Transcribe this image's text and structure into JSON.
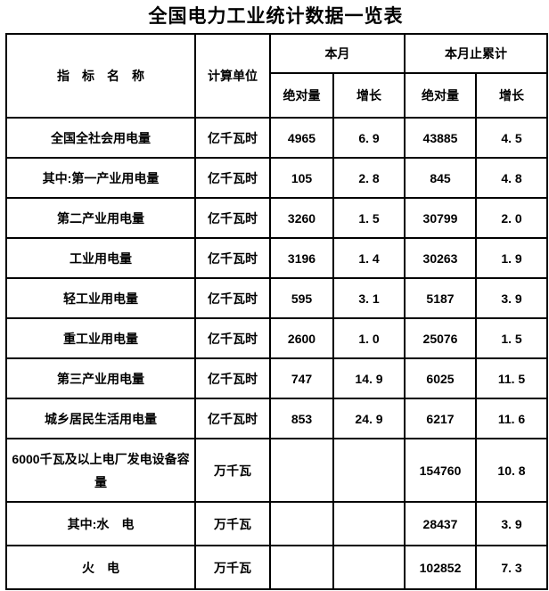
{
  "title": "全国电力工业统计数据一览表",
  "table": {
    "header": {
      "indicator": "指　标　名　称",
      "unit": "计算单位",
      "month": "本月",
      "cumulative": "本月止累计",
      "absolute": "绝对量",
      "growth": "增长"
    },
    "rows": [
      {
        "indicator": "全国全社会用电量",
        "unit": "亿千瓦时",
        "month_abs": "4965",
        "month_growth": "6. 9",
        "cum_abs": "43885",
        "cum_growth": "4. 5"
      },
      {
        "indicator": "其中:第一产业用电量",
        "unit": "亿千瓦时",
        "month_abs": "105",
        "month_growth": "2. 8",
        "cum_abs": "845",
        "cum_growth": "4. 8"
      },
      {
        "indicator": "第二产业用电量",
        "unit": "亿千瓦时",
        "month_abs": "3260",
        "month_growth": "1. 5",
        "cum_abs": "30799",
        "cum_growth": "2. 0"
      },
      {
        "indicator": "工业用电量",
        "unit": "亿千瓦时",
        "month_abs": "3196",
        "month_growth": "1. 4",
        "cum_abs": "30263",
        "cum_growth": "1. 9"
      },
      {
        "indicator": "轻工业用电量",
        "unit": "亿千瓦时",
        "month_abs": "595",
        "month_growth": "3. 1",
        "cum_abs": "5187",
        "cum_growth": "3. 9"
      },
      {
        "indicator": "重工业用电量",
        "unit": "亿千瓦时",
        "month_abs": "2600",
        "month_growth": "1. 0",
        "cum_abs": "25076",
        "cum_growth": "1. 5"
      },
      {
        "indicator": "第三产业用电量",
        "unit": "亿千瓦时",
        "month_abs": "747",
        "month_growth": "14. 9",
        "cum_abs": "6025",
        "cum_growth": "11. 5"
      },
      {
        "indicator": "城乡居民生活用电量",
        "unit": "亿千瓦时",
        "month_abs": "853",
        "month_growth": "24. 9",
        "cum_abs": "6217",
        "cum_growth": "11. 6"
      },
      {
        "indicator": "6000千瓦及以上电厂发电设备容量",
        "unit": "万千瓦",
        "month_abs": "",
        "month_growth": "",
        "cum_abs": "154760",
        "cum_growth": "10. 8"
      },
      {
        "indicator": "其中:水　电",
        "unit": "万千瓦",
        "month_abs": "",
        "month_growth": "",
        "cum_abs": "28437",
        "cum_growth": "3. 9"
      },
      {
        "indicator": "火　电",
        "unit": "万千瓦",
        "month_abs": "",
        "month_growth": "",
        "cum_abs": "102852",
        "cum_growth": "7. 3"
      }
    ]
  }
}
